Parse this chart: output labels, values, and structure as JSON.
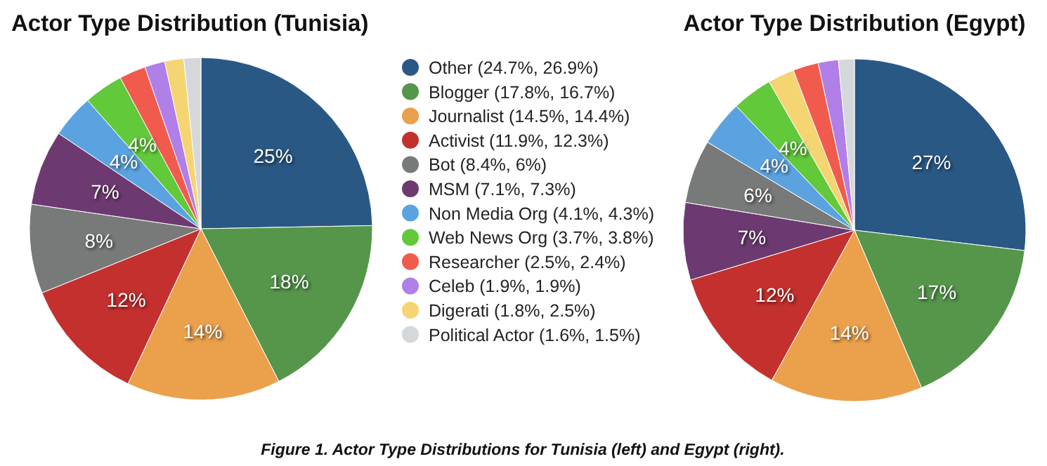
{
  "chart_data": [
    {
      "type": "pie",
      "title": "Actor Type Distribution (Tunisia)",
      "legend": "right",
      "annotations": [
        "Figure 1. Actor Type Distributions for Tunisia (left) and Egypt (right)."
      ],
      "categories": [
        "Other (24.7%, 26.9%)",
        "Blogger (17.8%, 16.7%)",
        "Journalist (14.5%, 14.4%)",
        "Activist (11.9%, 12.3%)",
        "Bot (8.4%, 6%)",
        "MSM (7.1%, 7.3%)",
        "Non Media Org (4.1%, 4.3%)",
        "Web News Org (3.7%, 3.8%)",
        "Researcher (2.5%, 2.4%)",
        "Celeb (1.9%, 1.9%)",
        "Digerati (1.8%, 2.5%)",
        "Political Actor (1.6%, 1.5%)"
      ],
      "values": [
        24.7,
        17.8,
        14.5,
        11.9,
        8.4,
        7.1,
        4.1,
        3.7,
        2.5,
        1.9,
        1.8,
        1.6
      ],
      "value_labels": [
        "25%",
        "18%",
        "14%",
        "12%",
        "8%",
        "7%",
        "4%",
        "4%",
        null,
        null,
        null,
        null
      ],
      "colors": [
        "#2a5885",
        "#55964b",
        "#eba04c",
        "#c4302e",
        "#787a79",
        "#6c3a70",
        "#5ba3e0",
        "#62c93a",
        "#f15b4e",
        "#b07fe8",
        "#f5d472",
        "#d5d8da"
      ]
    },
    {
      "type": "pie",
      "title": "Actor Type Distribution (Egypt)",
      "legend": false,
      "categories": [
        null,
        null,
        null,
        null,
        null,
        null,
        null,
        null,
        null,
        null,
        null,
        null
      ],
      "values": [
        26.9,
        16.7,
        14.4,
        12.3,
        7.3,
        6,
        4.3,
        3.8,
        2.5,
        2.4,
        1.9,
        1.5
      ],
      "value_labels": [
        "27%",
        "17%",
        "14%",
        "12%",
        "7%",
        "6%",
        "4%",
        "4%",
        null,
        null,
        null,
        null
      ],
      "colors": [
        "#2a5885",
        "#55964b",
        "#eba04c",
        "#c4302e",
        "#6c3a70",
        "#787a79",
        "#5ba3e0",
        "#62c93a",
        "#f5d472",
        "#f15b4e",
        "#b07fe8",
        "#d5d8da"
      ]
    }
  ]
}
